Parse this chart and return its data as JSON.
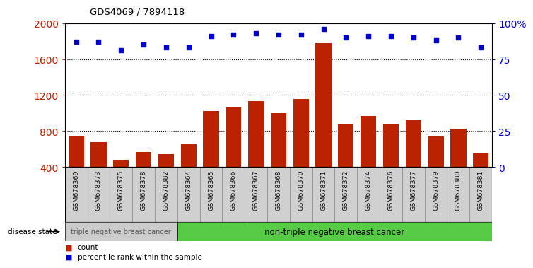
{
  "title": "GDS4069 / 7894118",
  "samples": [
    "GSM678369",
    "GSM678373",
    "GSM678375",
    "GSM678378",
    "GSM678382",
    "GSM678364",
    "GSM678365",
    "GSM678366",
    "GSM678367",
    "GSM678368",
    "GSM678370",
    "GSM678371",
    "GSM678372",
    "GSM678374",
    "GSM678376",
    "GSM678377",
    "GSM678379",
    "GSM678380",
    "GSM678381"
  ],
  "counts": [
    750,
    680,
    480,
    570,
    540,
    650,
    1020,
    1060,
    1130,
    1000,
    1160,
    1780,
    870,
    970,
    870,
    920,
    740,
    830,
    560
  ],
  "percentiles": [
    87,
    87,
    81,
    85,
    83,
    83,
    91,
    92,
    93,
    92,
    92,
    96,
    90,
    91,
    91,
    90,
    88,
    90,
    83
  ],
  "group1_count": 5,
  "group1_label": "triple negative breast cancer",
  "group2_label": "non-triple negative breast cancer",
  "bar_color": "#bb2200",
  "dot_color": "#0000cc",
  "ylim_left": [
    400,
    2000
  ],
  "ylim_right": [
    0,
    100
  ],
  "yticks_left": [
    400,
    800,
    1200,
    1600,
    2000
  ],
  "yticks_right": [
    0,
    25,
    50,
    75,
    100
  ],
  "cell_bg": "#d0d0d0",
  "group1_bg": "#cccccc",
  "group2_bg": "#55cc44",
  "disease_state_label": "disease state",
  "legend_count_label": "count",
  "legend_pct_label": "percentile rank within the sample"
}
